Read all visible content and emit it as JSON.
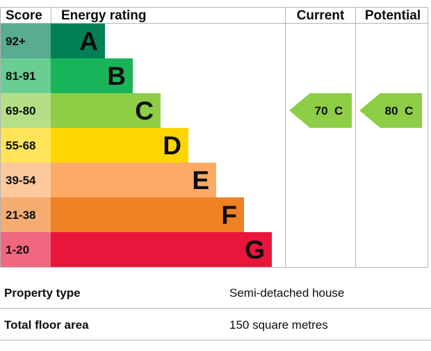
{
  "chart_data": {
    "type": "table",
    "headers": {
      "score": "Score",
      "rating": "Energy rating",
      "current": "Current",
      "potential": "Potential"
    },
    "bands": [
      {
        "score": "92+",
        "letter": "A",
        "color": "#008054"
      },
      {
        "score": "81-91",
        "letter": "B",
        "color": "#19b459"
      },
      {
        "score": "69-80",
        "letter": "C",
        "color": "#8dce46"
      },
      {
        "score": "55-68",
        "letter": "D",
        "color": "#ffd500"
      },
      {
        "score": "39-54",
        "letter": "E",
        "color": "#fcaa65"
      },
      {
        "score": "21-38",
        "letter": "F",
        "color": "#ef8023"
      },
      {
        "score": "1-20",
        "letter": "G",
        "color": "#e9153b"
      }
    ],
    "current": {
      "value": 70,
      "band": "C",
      "label": "70  C",
      "color": "#8dce46"
    },
    "potential": {
      "value": 80,
      "band": "C",
      "label": "80  C",
      "color": "#8dce46"
    }
  },
  "details": [
    {
      "label": "Property type",
      "value": "Semi-detached house"
    },
    {
      "label": "Total floor area",
      "value": "150 square metres"
    }
  ]
}
